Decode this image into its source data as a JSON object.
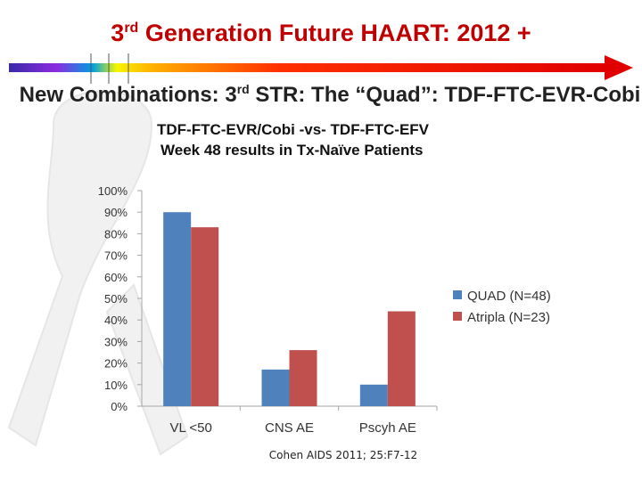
{
  "slide": {
    "title_prefix": "3",
    "title_sup": "rd",
    "title_suffix": " Generation Future HAART: 2012 +",
    "subtitle_prefix": "New Combinations: 3",
    "subtitle_sup": "rd",
    "subtitle_suffix": " STR: The “Quad”: TDF-FTC-EVR-Cobi",
    "chart_heading_1": "TDF-FTC-EVR/Cobi  -vs-  TDF-FTC-EFV",
    "chart_heading_2": "Week 48 results in Tx-Naïve Patients",
    "citation": "Cohen AIDS 2011; 25:F7-12"
  },
  "colors": {
    "title": "#c00000",
    "quad": "#4f81bd",
    "atripla": "#c0504d",
    "ribbon": "#f0f0f0"
  },
  "chart_data": {
    "type": "bar",
    "title": "TDF-FTC-EVR/Cobi -vs- TDF-FTC-EFV Week 48 results in Tx-Naïve Patients",
    "categories": [
      "VL <50",
      "CNS AE",
      "Pscyh AE"
    ],
    "series": [
      {
        "name": "QUAD (N=48)",
        "values": [
          90,
          17,
          10
        ]
      },
      {
        "name": "Atripla (N=23)",
        "values": [
          83,
          26,
          44
        ]
      }
    ],
    "y_ticks": [
      "0%",
      "10%",
      "20%",
      "30%",
      "40%",
      "50%",
      "60%",
      "70%",
      "80%",
      "90%",
      "100%"
    ],
    "ylim": [
      0,
      100
    ],
    "ylabel": "",
    "xlabel": "",
    "legend_position": "right",
    "grid": false
  }
}
